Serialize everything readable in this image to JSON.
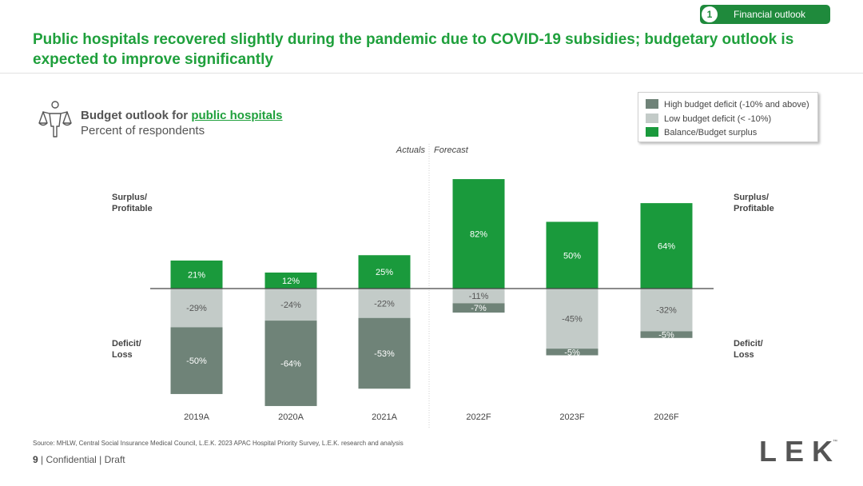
{
  "header": {
    "section_number": "1",
    "section_label": "Financial  outlook",
    "title": "Public hospitals recovered slightly during the pandemic due to COVID-19 subsidies; budgetary outlook is expected to improve significantly"
  },
  "subtitle": {
    "prefix": "Budget outlook for ",
    "highlight": "public hospitals",
    "units": "Percent of respondents"
  },
  "side_labels": {
    "left_surplus_1": "Surplus/",
    "left_surplus_2": "Profitable",
    "left_deficit_1": "Deficit/",
    "left_deficit_2": "Loss",
    "right_surplus_1": "Surplus/",
    "right_surplus_2": "Profitable",
    "right_deficit_1": "Deficit/",
    "right_deficit_2": "Loss"
  },
  "colors": {
    "high_deficit": "#6f8378",
    "low_deficit": "#c3cbc8",
    "surplus": "#1a9a3c",
    "axis": "#444444"
  },
  "chart_data": {
    "type": "bar",
    "stacked": true,
    "title": "Budget outlook for public hospitals",
    "ylabel": "Percent of respondents",
    "categories": [
      "2019A",
      "2020A",
      "2021A",
      "2022F",
      "2023F",
      "2026F"
    ],
    "divider_labels": {
      "left": "Actuals",
      "right": "Forecast"
    },
    "series": [
      {
        "name": "Balance/Budget surplus",
        "values": [
          21,
          12,
          25,
          82,
          50,
          64
        ],
        "labels": [
          "21%",
          "12%",
          "25%",
          "82%",
          "50%",
          "64%"
        ]
      },
      {
        "name": "Low budget deficit (< -10%)",
        "values": [
          -29,
          -24,
          -22,
          -11,
          -45,
          -32
        ],
        "labels": [
          "-29%",
          "-24%",
          "-22%",
          "-11%",
          "-45%",
          "-32%"
        ]
      },
      {
        "name": "High budget deficit (-10% and above)",
        "values": [
          -50,
          -64,
          -53,
          -7,
          -5,
          -5
        ],
        "labels": [
          "-50%",
          "-64%",
          "-53%",
          "-7%",
          "-5%",
          "-5%"
        ]
      }
    ],
    "legend": [
      "High budget deficit (-10% and above)",
      "Low budget deficit (< -10%)",
      "Balance/Budget surplus"
    ],
    "ylim": [
      -90,
      85
    ]
  },
  "footer": {
    "source": "Source: MHLW,  Central Social Insurance Medical Council, L.E.K. 2023 APAC Hospital Priority Survey, L.E.K. research and analysis",
    "page_number": "9",
    "confidential": " | Confidential | Draft",
    "logo_text": "LEK",
    "logo_tm": "™"
  }
}
